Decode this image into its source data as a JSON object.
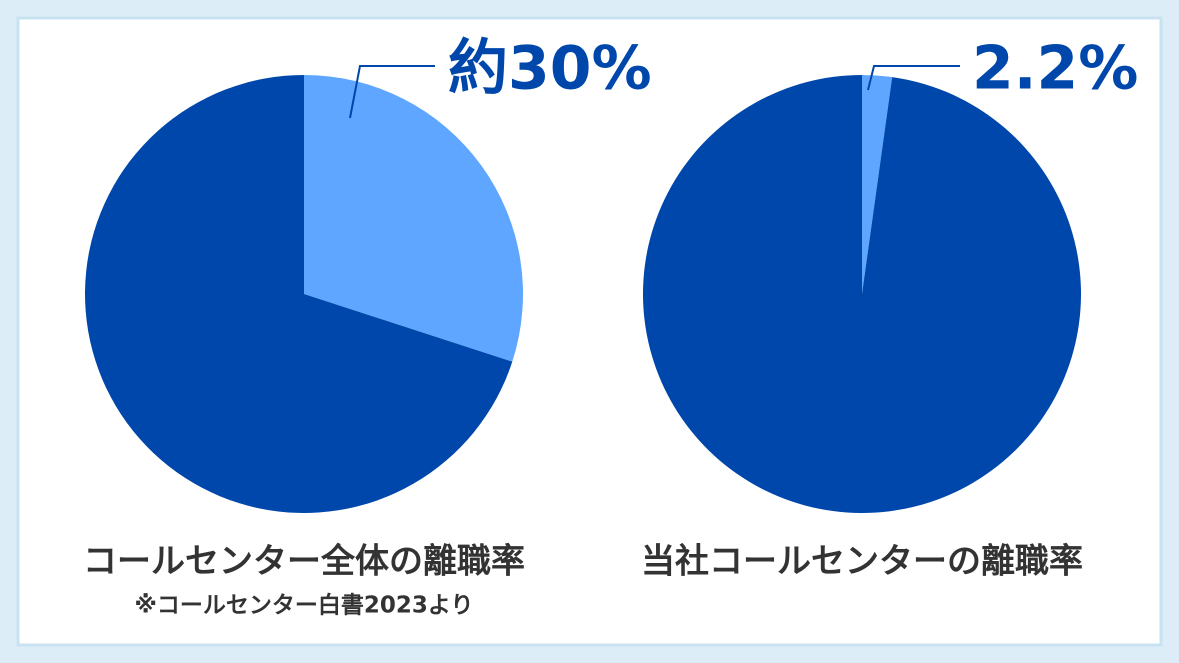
{
  "chart_data": [
    {
      "type": "pie",
      "title": "コールセンター全体の離職率",
      "subtitle": "※コールセンター白書2023より",
      "values": [
        30,
        70
      ],
      "value_labels": [
        "約30%",
        null
      ],
      "colors": [
        "#5ea6ff",
        "#0047ab"
      ]
    },
    {
      "type": "pie",
      "title": "当社コールセンターの離職率",
      "values": [
        2.2,
        97.8
      ],
      "value_labels": [
        "2.2%",
        null
      ],
      "colors": [
        "#5ea6ff",
        "#0047ab"
      ]
    }
  ]
}
